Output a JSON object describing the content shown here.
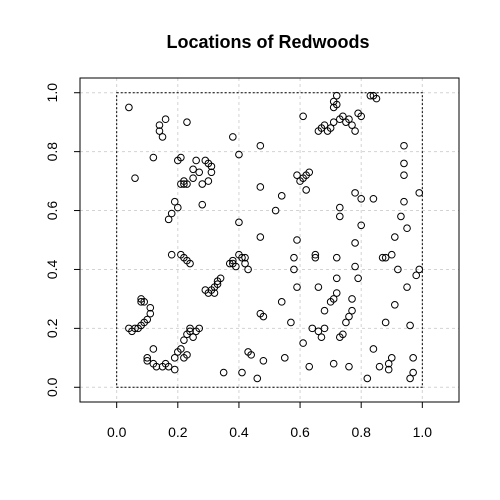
{
  "chart_data": {
    "type": "scatter",
    "title": "Locations of Redwoods",
    "xlabel": "",
    "ylabel": "",
    "xlim": [
      -0.12,
      1.12
    ],
    "ylim": [
      -0.05,
      1.05
    ],
    "grid": true,
    "window": {
      "x": [
        0,
        1
      ],
      "y": [
        0,
        1
      ]
    },
    "x_ticks": [
      0.0,
      0.2,
      0.4,
      0.6,
      0.8,
      1.0
    ],
    "x_tick_labels": [
      "0.0",
      "0.2",
      "0.4",
      "0.6",
      "0.8",
      "1.0"
    ],
    "y_ticks": [
      0.0,
      0.2,
      0.4,
      0.6,
      0.8,
      1.0
    ],
    "y_tick_labels": [
      "0.0",
      "0.2",
      "0.4",
      "0.6",
      "0.8",
      "1.0"
    ],
    "points": [
      [
        0.04,
        0.95
      ],
      [
        0.06,
        0.71
      ],
      [
        0.04,
        0.2
      ],
      [
        0.05,
        0.19
      ],
      [
        0.06,
        0.2
      ],
      [
        0.07,
        0.2
      ],
      [
        0.08,
        0.21
      ],
      [
        0.09,
        0.22
      ],
      [
        0.1,
        0.23
      ],
      [
        0.08,
        0.29
      ],
      [
        0.08,
        0.3
      ],
      [
        0.09,
        0.29
      ],
      [
        0.11,
        0.27
      ],
      [
        0.11,
        0.25
      ],
      [
        0.1,
        0.1
      ],
      [
        0.1,
        0.09
      ],
      [
        0.12,
        0.08
      ],
      [
        0.12,
        0.13
      ],
      [
        0.13,
        0.07
      ],
      [
        0.15,
        0.07
      ],
      [
        0.16,
        0.08
      ],
      [
        0.17,
        0.07
      ],
      [
        0.19,
        0.06
      ],
      [
        0.12,
        0.78
      ],
      [
        0.14,
        0.87
      ],
      [
        0.14,
        0.89
      ],
      [
        0.15,
        0.85
      ],
      [
        0.16,
        0.91
      ],
      [
        0.17,
        0.57
      ],
      [
        0.18,
        0.59
      ],
      [
        0.19,
        0.63
      ],
      [
        0.2,
        0.61
      ],
      [
        0.18,
        0.45
      ],
      [
        0.2,
        0.77
      ],
      [
        0.21,
        0.78
      ],
      [
        0.21,
        0.69
      ],
      [
        0.22,
        0.7
      ],
      [
        0.22,
        0.69
      ],
      [
        0.23,
        0.69
      ],
      [
        0.21,
        0.45
      ],
      [
        0.22,
        0.44
      ],
      [
        0.23,
        0.43
      ],
      [
        0.24,
        0.42
      ],
      [
        0.23,
        0.9
      ],
      [
        0.23,
        0.18
      ],
      [
        0.24,
        0.2
      ],
      [
        0.24,
        0.19
      ],
      [
        0.25,
        0.17
      ],
      [
        0.26,
        0.19
      ],
      [
        0.27,
        0.2
      ],
      [
        0.22,
        0.16
      ],
      [
        0.21,
        0.13
      ],
      [
        0.2,
        0.12
      ],
      [
        0.19,
        0.1
      ],
      [
        0.22,
        0.1
      ],
      [
        0.23,
        0.11
      ],
      [
        0.25,
        0.74
      ],
      [
        0.26,
        0.77
      ],
      [
        0.27,
        0.73
      ],
      [
        0.25,
        0.71
      ],
      [
        0.28,
        0.69
      ],
      [
        0.29,
        0.77
      ],
      [
        0.3,
        0.76
      ],
      [
        0.31,
        0.75
      ],
      [
        0.31,
        0.73
      ],
      [
        0.3,
        0.7
      ],
      [
        0.28,
        0.62
      ],
      [
        0.29,
        0.33
      ],
      [
        0.3,
        0.32
      ],
      [
        0.31,
        0.33
      ],
      [
        0.32,
        0.34
      ],
      [
        0.32,
        0.32
      ],
      [
        0.33,
        0.35
      ],
      [
        0.33,
        0.36
      ],
      [
        0.34,
        0.37
      ],
      [
        0.35,
        0.05
      ],
      [
        0.37,
        0.42
      ],
      [
        0.38,
        0.42
      ],
      [
        0.38,
        0.43
      ],
      [
        0.39,
        0.41
      ],
      [
        0.4,
        0.45
      ],
      [
        0.41,
        0.44
      ],
      [
        0.42,
        0.44
      ],
      [
        0.42,
        0.42
      ],
      [
        0.43,
        0.4
      ],
      [
        0.43,
        0.12
      ],
      [
        0.44,
        0.11
      ],
      [
        0.38,
        0.85
      ],
      [
        0.4,
        0.79
      ],
      [
        0.4,
        0.56
      ],
      [
        0.41,
        0.05
      ],
      [
        0.46,
        0.03
      ],
      [
        0.47,
        0.25
      ],
      [
        0.48,
        0.24
      ],
      [
        0.47,
        0.51
      ],
      [
        0.47,
        0.68
      ],
      [
        0.47,
        0.82
      ],
      [
        0.48,
        0.09
      ],
      [
        0.52,
        0.6
      ],
      [
        0.54,
        0.65
      ],
      [
        0.54,
        0.29
      ],
      [
        0.55,
        0.1
      ],
      [
        0.57,
        0.22
      ],
      [
        0.58,
        0.44
      ],
      [
        0.58,
        0.4
      ],
      [
        0.59,
        0.5
      ],
      [
        0.59,
        0.34
      ],
      [
        0.59,
        0.72
      ],
      [
        0.6,
        0.7
      ],
      [
        0.61,
        0.71
      ],
      [
        0.61,
        0.92
      ],
      [
        0.62,
        0.67
      ],
      [
        0.62,
        0.72
      ],
      [
        0.63,
        0.73
      ],
      [
        0.61,
        0.15
      ],
      [
        0.63,
        0.07
      ],
      [
        0.64,
        0.2
      ],
      [
        0.66,
        0.87
      ],
      [
        0.67,
        0.88
      ],
      [
        0.68,
        0.89
      ],
      [
        0.69,
        0.87
      ],
      [
        0.7,
        0.88
      ],
      [
        0.71,
        0.9
      ],
      [
        0.71,
        0.95
      ],
      [
        0.71,
        0.97
      ],
      [
        0.72,
        0.99
      ],
      [
        0.72,
        0.96
      ],
      [
        0.73,
        0.91
      ],
      [
        0.74,
        0.92
      ],
      [
        0.75,
        0.9
      ],
      [
        0.76,
        0.91
      ],
      [
        0.77,
        0.89
      ],
      [
        0.78,
        0.87
      ],
      [
        0.79,
        0.93
      ],
      [
        0.8,
        0.92
      ],
      [
        0.65,
        0.44
      ],
      [
        0.65,
        0.45
      ],
      [
        0.66,
        0.34
      ],
      [
        0.66,
        0.19
      ],
      [
        0.67,
        0.17
      ],
      [
        0.68,
        0.2
      ],
      [
        0.68,
        0.26
      ],
      [
        0.7,
        0.29
      ],
      [
        0.71,
        0.3
      ],
      [
        0.72,
        0.37
      ],
      [
        0.72,
        0.32
      ],
      [
        0.71,
        0.08
      ],
      [
        0.72,
        0.44
      ],
      [
        0.73,
        0.58
      ],
      [
        0.73,
        0.61
      ],
      [
        0.73,
        0.17
      ],
      [
        0.74,
        0.18
      ],
      [
        0.75,
        0.22
      ],
      [
        0.76,
        0.24
      ],
      [
        0.77,
        0.26
      ],
      [
        0.77,
        0.3
      ],
      [
        0.76,
        0.07
      ],
      [
        0.78,
        0.41
      ],
      [
        0.78,
        0.49
      ],
      [
        0.78,
        0.66
      ],
      [
        0.79,
        0.37
      ],
      [
        0.8,
        0.55
      ],
      [
        0.8,
        0.64
      ],
      [
        0.82,
        0.03
      ],
      [
        0.83,
        0.99
      ],
      [
        0.84,
        0.99
      ],
      [
        0.84,
        0.64
      ],
      [
        0.84,
        0.13
      ],
      [
        0.85,
        0.98
      ],
      [
        0.86,
        0.07
      ],
      [
        0.87,
        0.44
      ],
      [
        0.88,
        0.44
      ],
      [
        0.88,
        0.22
      ],
      [
        0.89,
        0.06
      ],
      [
        0.89,
        0.08
      ],
      [
        0.9,
        0.1
      ],
      [
        0.9,
        0.45
      ],
      [
        0.91,
        0.51
      ],
      [
        0.91,
        0.28
      ],
      [
        0.92,
        0.4
      ],
      [
        0.93,
        0.58
      ],
      [
        0.94,
        0.63
      ],
      [
        0.94,
        0.72
      ],
      [
        0.94,
        0.76
      ],
      [
        0.94,
        0.82
      ],
      [
        0.95,
        0.34
      ],
      [
        0.95,
        0.54
      ],
      [
        0.96,
        0.21
      ],
      [
        0.96,
        0.03
      ],
      [
        0.97,
        0.1
      ],
      [
        0.97,
        0.05
      ],
      [
        0.98,
        0.38
      ],
      [
        0.99,
        0.4
      ],
      [
        0.99,
        0.66
      ]
    ]
  }
}
